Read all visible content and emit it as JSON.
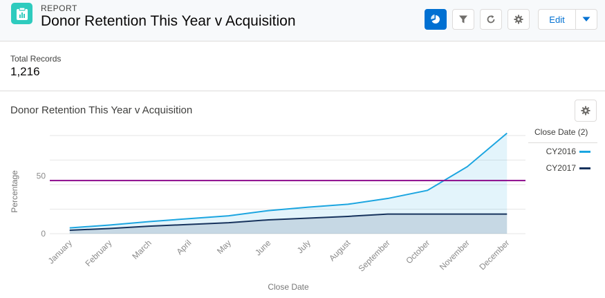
{
  "header": {
    "eyebrow": "REPORT",
    "title": "Donor Retention This Year v Acquisition",
    "icon": "report-icon",
    "buttons": [
      "chart-icon",
      "filter-icon",
      "refresh-icon",
      "gear-icon"
    ],
    "edit_label": "Edit",
    "accent_color": "#0070d2"
  },
  "summary": {
    "label": "Total Records",
    "value": "1,216"
  },
  "chart_panel": {
    "title": "Donor Retention This Year v Acquisition",
    "legend_title": "Close Date (2)"
  },
  "chart_data": {
    "type": "area",
    "title": "Donor Retention This Year v Acquisition",
    "xlabel": "Close Date",
    "ylabel": "Percentage",
    "categories": [
      "January",
      "February",
      "March",
      "April",
      "May",
      "June",
      "July",
      "August",
      "September",
      "October",
      "November",
      "December"
    ],
    "yticks": [
      0,
      50
    ],
    "ylim": [
      0,
      85
    ],
    "grid": true,
    "legend_position": "right",
    "series": [
      {
        "name": "CY2016",
        "color": "#1ba5e0",
        "values": [
          5,
          7.5,
          10.5,
          13,
          15.5,
          20,
          23,
          25.5,
          30.5,
          37.5,
          58,
          87
        ]
      },
      {
        "name": "CY2017",
        "color": "#16325c",
        "values": [
          3,
          4.5,
          6.5,
          8,
          9.5,
          12,
          13.5,
          15,
          17,
          17,
          17,
          17
        ]
      }
    ],
    "reference_line": {
      "value": 46,
      "color": "#8b0a8b"
    }
  }
}
